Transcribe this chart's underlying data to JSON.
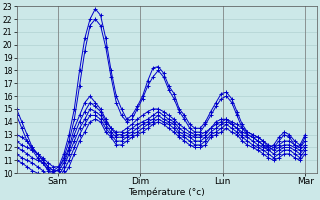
{
  "xlabel": "Température (°c)",
  "background_color": "#cce8e8",
  "grid_color": "#aacccc",
  "line_color": "#0000cc",
  "marker": "+",
  "ylim": [
    10,
    23
  ],
  "yticks": [
    10,
    11,
    12,
    13,
    14,
    15,
    16,
    17,
    18,
    19,
    20,
    21,
    22,
    23
  ],
  "xtick_labels": [
    "Sam",
    "Dim",
    "Lun",
    "Mar"
  ],
  "xtick_positions": [
    24,
    72,
    120,
    168
  ],
  "xlim": [
    0,
    175
  ],
  "n_points": 56,
  "series": [
    [
      15.0,
      14.0,
      13.0,
      12.0,
      11.5,
      11.0,
      10.5,
      10.2,
      10.5,
      11.5,
      13.0,
      15.0,
      18.0,
      20.5,
      22.0,
      22.8,
      22.3,
      20.5,
      18.0,
      16.0,
      15.0,
      14.2,
      14.5,
      15.2,
      16.0,
      17.2,
      18.2,
      18.3,
      17.8,
      16.8,
      16.2,
      15.0,
      14.5,
      13.8,
      13.5,
      13.5,
      14.0,
      14.8,
      15.5,
      16.2,
      16.3,
      15.8,
      14.8,
      13.8,
      13.2,
      13.0,
      12.8,
      12.5,
      12.0,
      12.2,
      12.8,
      13.2,
      13.0,
      12.5,
      12.2,
      13.0
    ],
    [
      14.5,
      13.5,
      12.5,
      11.8,
      11.2,
      10.8,
      10.3,
      10.0,
      10.3,
      11.2,
      12.5,
      14.2,
      16.8,
      19.5,
      21.5,
      22.0,
      21.5,
      19.8,
      17.5,
      15.5,
      14.5,
      14.0,
      14.2,
      15.0,
      15.8,
      16.8,
      17.5,
      18.0,
      17.5,
      16.5,
      15.8,
      14.8,
      14.2,
      13.5,
      13.2,
      13.2,
      13.8,
      14.5,
      15.2,
      15.8,
      16.0,
      15.5,
      14.5,
      13.5,
      13.0,
      12.8,
      12.5,
      12.2,
      11.8,
      12.0,
      12.5,
      13.0,
      12.8,
      12.2,
      12.0,
      12.8
    ],
    [
      13.0,
      12.8,
      12.5,
      12.0,
      11.5,
      11.2,
      10.8,
      10.5,
      10.5,
      11.0,
      12.0,
      13.5,
      14.5,
      15.5,
      16.0,
      15.5,
      15.0,
      14.2,
      13.5,
      13.2,
      13.2,
      13.5,
      13.8,
      14.2,
      14.5,
      14.8,
      15.0,
      15.0,
      14.8,
      14.5,
      14.2,
      13.8,
      13.5,
      13.2,
      13.0,
      13.0,
      13.2,
      13.5,
      13.8,
      14.0,
      14.2,
      14.0,
      13.8,
      13.5,
      13.2,
      13.0,
      12.8,
      12.5,
      12.2,
      12.0,
      12.2,
      12.5,
      12.5,
      12.2,
      12.0,
      12.5
    ],
    [
      12.5,
      12.2,
      12.0,
      11.8,
      11.5,
      11.0,
      10.5,
      10.2,
      10.2,
      10.8,
      11.8,
      13.0,
      14.0,
      14.8,
      15.5,
      15.2,
      14.8,
      14.0,
      13.5,
      13.0,
      13.0,
      13.2,
      13.5,
      13.8,
      14.0,
      14.2,
      14.5,
      14.8,
      14.5,
      14.2,
      14.0,
      13.5,
      13.2,
      13.0,
      12.8,
      12.8,
      13.0,
      13.5,
      14.0,
      14.2,
      14.2,
      13.8,
      13.5,
      13.2,
      13.0,
      12.8,
      12.5,
      12.2,
      12.0,
      11.8,
      12.0,
      12.2,
      12.2,
      12.0,
      11.8,
      12.2
    ],
    [
      12.0,
      11.8,
      11.5,
      11.2,
      11.0,
      10.8,
      10.2,
      9.8,
      9.8,
      10.5,
      11.5,
      12.5,
      13.5,
      14.2,
      15.0,
      14.8,
      14.5,
      13.8,
      13.2,
      12.8,
      12.8,
      13.0,
      13.2,
      13.5,
      13.8,
      14.0,
      14.2,
      14.5,
      14.2,
      14.0,
      13.8,
      13.2,
      13.0,
      12.8,
      12.5,
      12.5,
      12.8,
      13.2,
      13.5,
      13.8,
      14.0,
      13.8,
      13.5,
      13.0,
      12.8,
      12.5,
      12.2,
      12.0,
      11.8,
      11.5,
      11.8,
      12.0,
      12.0,
      11.8,
      11.5,
      12.0
    ],
    [
      11.5,
      11.2,
      11.0,
      10.8,
      10.5,
      10.2,
      9.8,
      9.5,
      9.5,
      10.2,
      11.0,
      12.0,
      13.0,
      13.8,
      14.5,
      14.5,
      14.2,
      13.5,
      13.0,
      12.5,
      12.5,
      12.8,
      13.0,
      13.2,
      13.5,
      13.8,
      14.0,
      14.2,
      14.0,
      13.8,
      13.5,
      13.0,
      12.8,
      12.5,
      12.2,
      12.2,
      12.5,
      13.0,
      13.2,
      13.5,
      13.8,
      13.5,
      13.2,
      12.8,
      12.5,
      12.2,
      12.0,
      11.8,
      11.5,
      11.2,
      11.5,
      11.8,
      11.8,
      11.5,
      11.2,
      11.8
    ],
    [
      11.0,
      10.8,
      10.5,
      10.2,
      10.0,
      9.8,
      9.5,
      9.2,
      9.2,
      9.8,
      10.5,
      11.5,
      12.5,
      13.2,
      14.0,
      14.2,
      14.0,
      13.2,
      12.8,
      12.2,
      12.2,
      12.5,
      12.8,
      13.0,
      13.2,
      13.5,
      13.8,
      14.0,
      13.8,
      13.5,
      13.2,
      12.8,
      12.5,
      12.2,
      12.0,
      12.0,
      12.2,
      12.8,
      13.0,
      13.2,
      13.5,
      13.2,
      13.0,
      12.5,
      12.2,
      12.0,
      11.8,
      11.5,
      11.2,
      11.0,
      11.2,
      11.5,
      11.5,
      11.2,
      11.0,
      11.5
    ]
  ]
}
